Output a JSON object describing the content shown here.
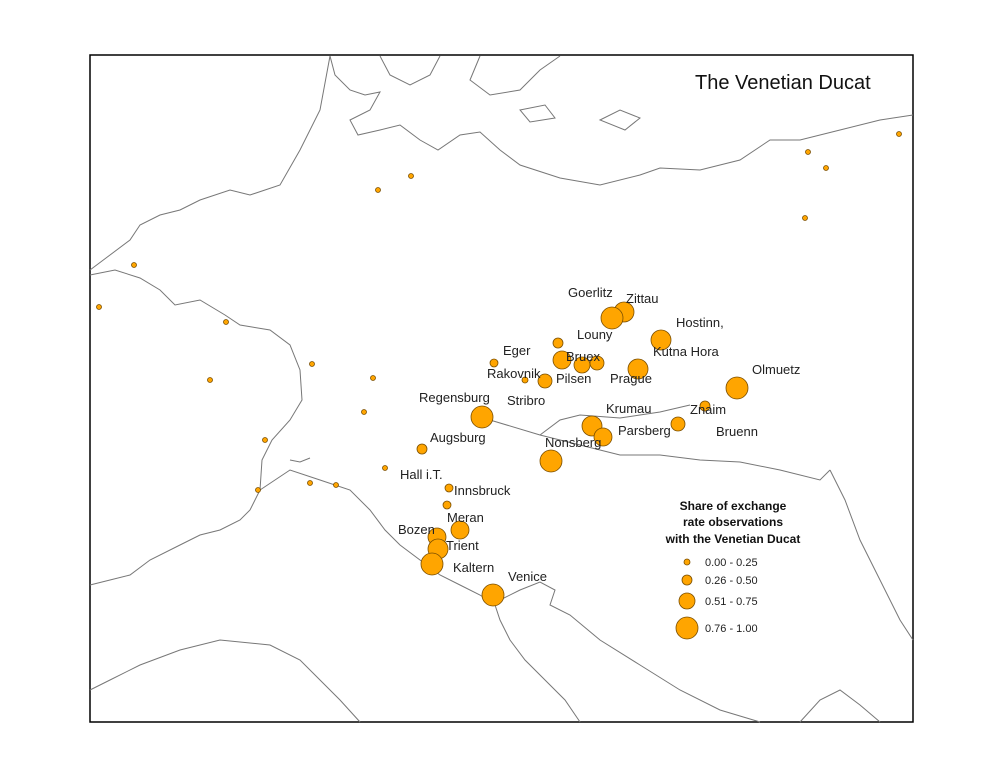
{
  "title": "The Venetian Ducat",
  "cities": [
    "Goerlitz",
    "Zittau",
    "Hostinn,",
    "Louny",
    "Eger",
    "Bruex",
    "Kutna Hora",
    "Olmuetz",
    "Rakovnik",
    "Pilsen",
    "Prague",
    "Regensburg",
    "Stribro",
    "Krumau",
    "Znaim",
    "Parsberg",
    "Bruenn",
    "Augsburg",
    "Nonsberg",
    "Hall i.T.",
    "Innsbruck",
    "Meran",
    "Bozen",
    "Trient",
    "Kaltern",
    "Venice"
  ],
  "legend": {
    "title": [
      "Share of exchange",
      "rate observations",
      "with the Venetian Ducat"
    ],
    "classes": [
      "0.00 - 0.25",
      "0.26 - 0.50",
      "0.51 - 0.75",
      "0.76 - 1.00"
    ]
  }
}
